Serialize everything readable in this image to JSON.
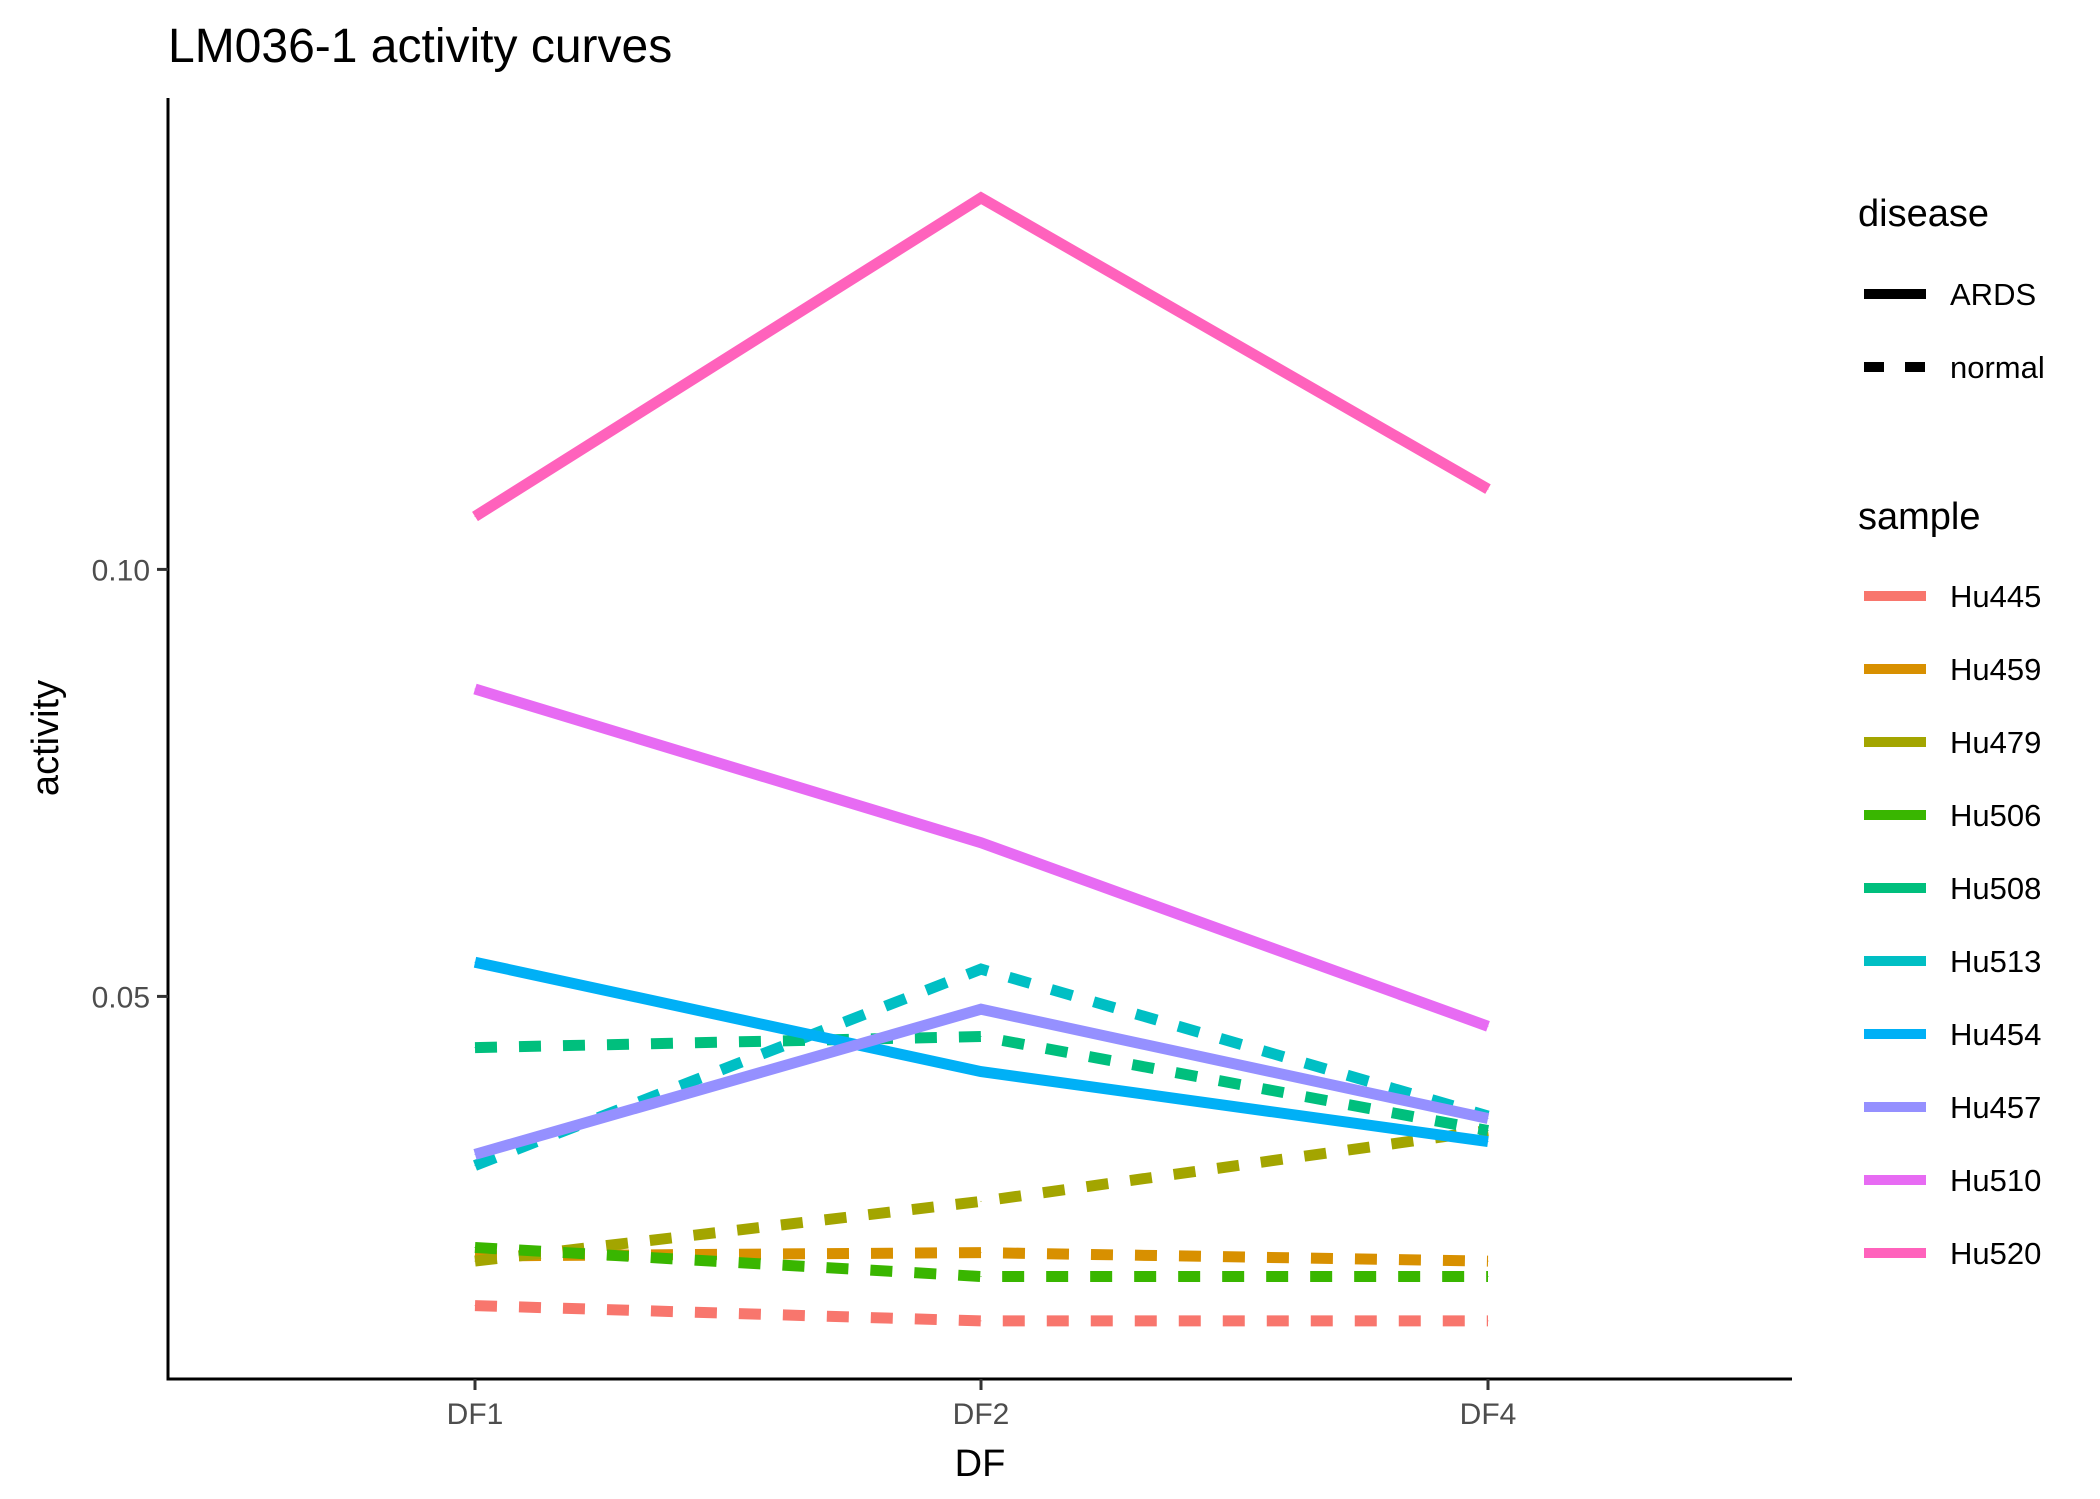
{
  "chart_data": {
    "type": "line",
    "title": "LM036-1 activity curves",
    "xlabel": "DF",
    "ylabel": "activity",
    "categories": [
      "DF1",
      "DF2",
      "DF4"
    ],
    "ylim": [
      0.0052,
      0.1552
    ],
    "yticks": [
      {
        "value": 0.05,
        "label": "0.05"
      },
      {
        "value": 0.1,
        "label": "0.10"
      }
    ],
    "grid": false,
    "legend_position": "right",
    "linetype_legend": {
      "title": "disease",
      "entries": [
        {
          "label": "ARDS",
          "linetype": "solid"
        },
        {
          "label": "normal",
          "linetype": "dashed"
        }
      ]
    },
    "color_legend": {
      "title": "sample",
      "entries": [
        {
          "label": "Hu445",
          "color": "#F8766D"
        },
        {
          "label": "Hu459",
          "color": "#D89000"
        },
        {
          "label": "Hu479",
          "color": "#A3A500"
        },
        {
          "label": "Hu506",
          "color": "#39B600"
        },
        {
          "label": "Hu508",
          "color": "#00BF7D"
        },
        {
          "label": "Hu513",
          "color": "#00BFC4"
        },
        {
          "label": "Hu454",
          "color": "#00B0F6"
        },
        {
          "label": "Hu457",
          "color": "#9590FF"
        },
        {
          "label": "Hu510",
          "color": "#E76BF3"
        },
        {
          "label": "Hu520",
          "color": "#FF62BC"
        }
      ]
    },
    "series": [
      {
        "name": "Hu445",
        "disease": "normal",
        "color": "#F8766D",
        "values": [
          0.0138,
          0.012,
          0.012
        ]
      },
      {
        "name": "Hu459",
        "disease": "normal",
        "color": "#D89000",
        "values": [
          0.0196,
          0.02,
          0.019
        ]
      },
      {
        "name": "Hu479",
        "disease": "normal",
        "color": "#A3A500",
        "values": [
          0.019,
          0.026,
          0.0343
        ]
      },
      {
        "name": "Hu506",
        "disease": "normal",
        "color": "#39B600",
        "values": [
          0.0206,
          0.0172,
          0.0172
        ]
      },
      {
        "name": "Hu508",
        "disease": "normal",
        "color": "#00BF7D",
        "values": [
          0.044,
          0.0453,
          0.0343
        ]
      },
      {
        "name": "Hu513",
        "disease": "normal",
        "color": "#00BFC4",
        "values": [
          0.0302,
          0.0532,
          0.036
        ]
      },
      {
        "name": "Hu454",
        "disease": "ARDS",
        "color": "#00B0F6",
        "values": [
          0.054,
          0.0412,
          0.033
        ]
      },
      {
        "name": "Hu457",
        "disease": "ARDS",
        "color": "#9590FF",
        "values": [
          0.0315,
          0.0485,
          0.0357
        ]
      },
      {
        "name": "Hu510",
        "disease": "ARDS",
        "color": "#E76BF3",
        "values": [
          0.086,
          0.068,
          0.0465
        ]
      },
      {
        "name": "Hu520",
        "disease": "ARDS",
        "color": "#FF62BC",
        "values": [
          0.1062,
          0.1435,
          0.1094
        ]
      }
    ]
  }
}
